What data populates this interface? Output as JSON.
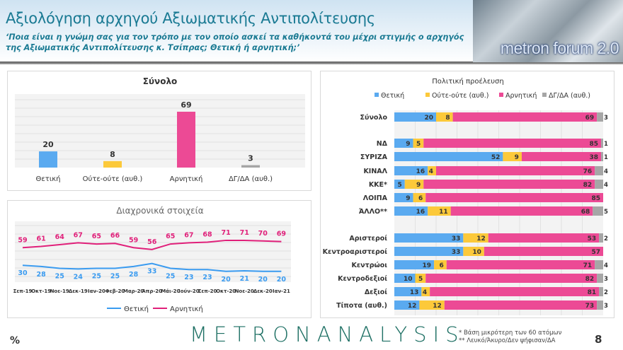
{
  "header": {
    "title": "Αξιολόγηση αρχηγού Αξιωματικής Αντιπολίτευσης",
    "subtitle": "‘Ποια είναι η γνώμη σας για τον τρόπο με τον οποίο ασκεί τα καθήκοντά του μέχρι στιγμής ο αρχηγός της Αξιωματικής Αντιπολίτευσης κ. Τσίπρας; Θετική ή αρνητική;’",
    "brand_image_text": "metron forum 2.0"
  },
  "colors": {
    "positive": "#5aaaf0",
    "neutral": "#fcc93a",
    "negative": "#ec4a95",
    "dk": "#a6a6a6",
    "pos_line": "#3a9bf0",
    "neg_line": "#e0207a"
  },
  "chart_data": [
    {
      "type": "bar",
      "title": "Σύνολο",
      "categories": [
        "Θετική",
        "Ούτε-ούτε (αυθ.)",
        "Αρνητική",
        "ΔΓ/ΔΑ (αυθ.)"
      ],
      "values": [
        20,
        8,
        69,
        3
      ],
      "ylim": [
        0,
        80
      ]
    },
    {
      "type": "line",
      "title": "Διαχρονικά στοιχεία",
      "x": [
        "Σεπ-19",
        "Οκτ-19",
        "Νοε-19",
        "Δεκ-19",
        "Ιαν-20",
        "Φεβ-20",
        "Μαρ-20",
        "Απρ-20",
        "Μάι-20",
        "Ιούν-20",
        "Σεπ-20",
        "Οκτ-20",
        "Νοε-20",
        "Δεκ-20",
        "Ιαν-21"
      ],
      "series": [
        {
          "name": "Θετική",
          "values": [
            30,
            28,
            25,
            24,
            25,
            25,
            28,
            33,
            25,
            23,
            23,
            20,
            21,
            20,
            20
          ]
        },
        {
          "name": "Αρνητική",
          "values": [
            59,
            61,
            64,
            67,
            65,
            66,
            59,
            56,
            65,
            67,
            68,
            71,
            71,
            70,
            69
          ]
        }
      ],
      "legend": "bottom"
    },
    {
      "type": "bar",
      "orientation": "horizontal-stacked",
      "title": "Πολιτική προέλευση",
      "legend": "top",
      "series_names": [
        "Θετική",
        "Ούτε-ούτε (αυθ.)",
        "Αρνητική",
        "ΔΓ/ΔΑ (αυθ.)"
      ],
      "groups": [
        [
          {
            "label": "Σύνολο",
            "values": [
              20,
              8,
              69,
              3
            ]
          }
        ],
        [
          {
            "label": "ΝΔ",
            "values": [
              9,
              5,
              85,
              1
            ]
          },
          {
            "label": "ΣΥΡΙΖΑ",
            "values": [
              52,
              9,
              38,
              1
            ]
          },
          {
            "label": "ΚΙΝΑΛ",
            "values": [
              16,
              4,
              76,
              4
            ]
          },
          {
            "label": "ΚΚΕ*",
            "values": [
              5,
              9,
              82,
              4
            ]
          },
          {
            "label": "ΛΟΙΠΑ",
            "values": [
              9,
              6,
              85,
              null
            ]
          },
          {
            "label": "ΆΛΛΟ**",
            "values": [
              16,
              11,
              68,
              5
            ]
          }
        ],
        [
          {
            "label": "Αριστεροί",
            "values": [
              33,
              12,
              53,
              2
            ]
          },
          {
            "label": "Κεντροαριστεροί",
            "values": [
              33,
              10,
              57,
              null
            ]
          },
          {
            "label": "Κεντρώοι",
            "values": [
              19,
              6,
              71,
              4
            ]
          },
          {
            "label": "Κεντροδεξιοί",
            "values": [
              10,
              5,
              82,
              3
            ]
          },
          {
            "label": "Δεξιοί",
            "values": [
              13,
              4,
              81,
              2
            ]
          },
          {
            "label": "Τίποτα (αυθ.)",
            "values": [
              12,
              12,
              73,
              3
            ]
          }
        ]
      ],
      "xlim": [
        0,
        100
      ]
    }
  ],
  "footer": {
    "unit": "%",
    "logo_text": "METRONANALYSIS",
    "notes": [
      "* Βάση μικρότερη των 60 ατόμων",
      "** Λευκό/Άκυρο/Δεν ψήφισαν/ΔΑ"
    ],
    "page_number": "8"
  }
}
